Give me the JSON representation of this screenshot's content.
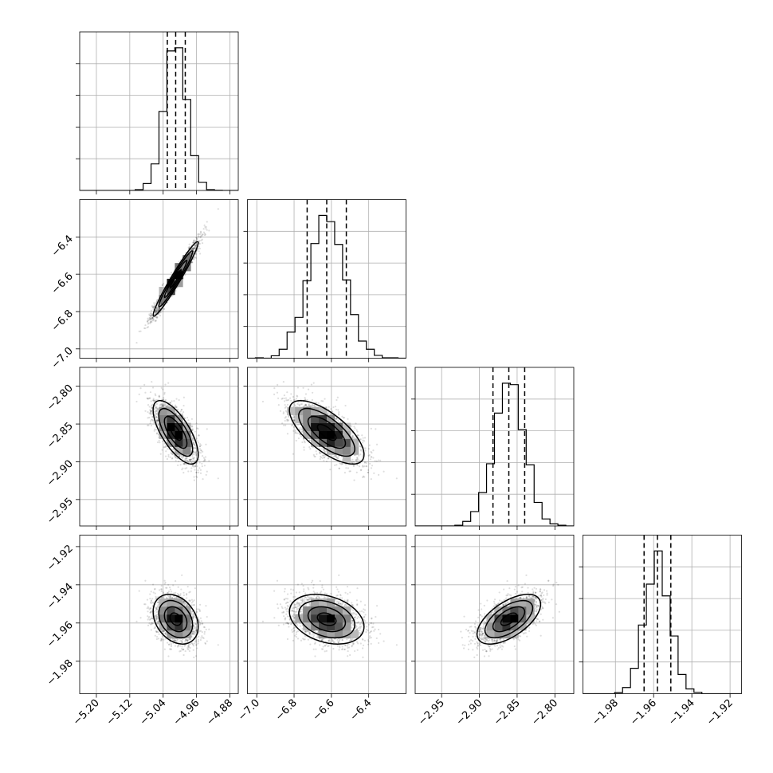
{
  "chart_data": {
    "type": "corner",
    "parameters": [
      {
        "center": -5.01,
        "sigma": 0.027,
        "quantiles": [
          -5.03,
          -5.01,
          -4.987
        ],
        "range": [
          -5.24,
          -4.86
        ],
        "ticks": [
          -5.2,
          -5.12,
          -5.04,
          -4.96,
          -4.88
        ],
        "tick_labels": [
          "−5.20",
          "−5.12",
          "−5.04",
          "−4.96",
          "−4.88"
        ]
      },
      {
        "center": -6.625,
        "sigma": 0.1,
        "quantiles": [
          -6.73,
          -6.625,
          -6.52
        ],
        "range": [
          -7.05,
          -6.2
        ],
        "ticks": [
          -7.0,
          -6.8,
          -6.6,
          -6.4
        ],
        "tick_labels": [
          "−7.0",
          "−6.8",
          "−6.6",
          "−6.4"
        ]
      },
      {
        "center": -2.861,
        "sigma": 0.021,
        "quantiles": [
          -2.882,
          -2.861,
          -2.84
        ],
        "range": [
          -2.985,
          -2.775
        ],
        "ticks": [
          -2.95,
          -2.9,
          -2.85,
          -2.8
        ],
        "tick_labels": [
          "−2.95",
          "−2.90",
          "−2.85",
          "−2.80"
        ]
      },
      {
        "center": -1.958,
        "sigma": 0.0065,
        "quantiles": [
          -1.965,
          -1.958,
          -1.951
        ],
        "range": [
          -1.997,
          -1.914
        ],
        "ticks": [
          -1.98,
          -1.96,
          -1.94,
          -1.92
        ],
        "tick_labels": [
          "−1.98",
          "−1.96",
          "−1.94",
          "−1.92"
        ]
      }
    ],
    "correlations": [
      [
        1.0,
        0.97,
        -0.7,
        -0.3
      ],
      [
        0.97,
        1.0,
        -0.7,
        -0.3
      ],
      [
        -0.7,
        -0.7,
        1.0,
        0.6
      ],
      [
        -0.3,
        -0.3,
        0.6,
        1.0
      ]
    ],
    "hist_bins": 20,
    "n_samples": 2000,
    "grid": true
  }
}
